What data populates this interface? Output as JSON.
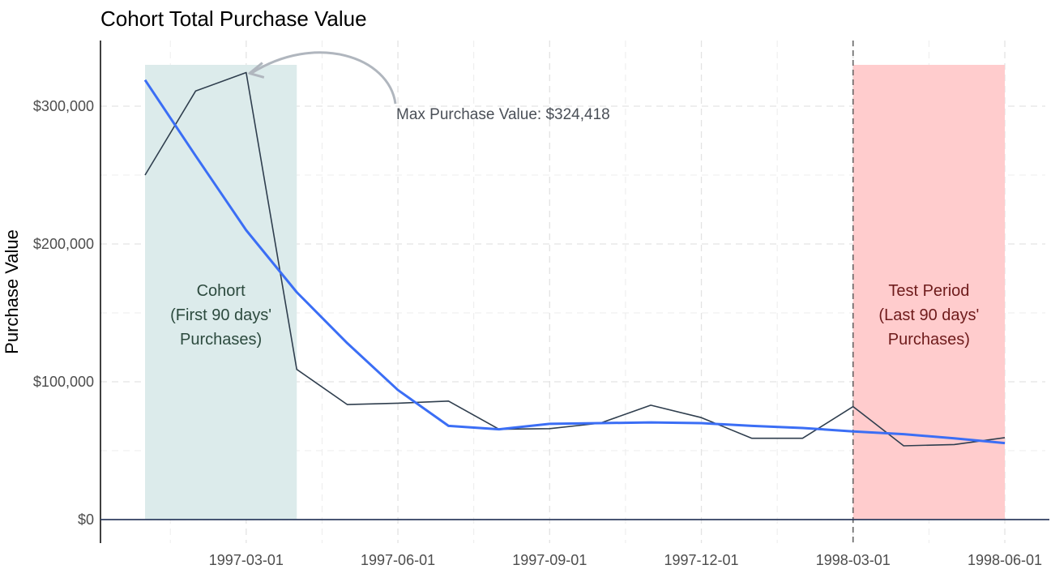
{
  "chart_data": {
    "type": "line",
    "title": "Cohort Total Purchase Value",
    "ylabel": "Purchase Value",
    "xlabel": "",
    "xlim": [
      "1997-01-01",
      "1998-06-01"
    ],
    "ylim": [
      0,
      340000
    ],
    "x_ticks": [
      "1997-03-01",
      "1997-06-01",
      "1997-09-01",
      "1997-12-01",
      "1998-03-01",
      "1998-06-01"
    ],
    "y_ticks": [
      {
        "value": 0,
        "label": "$0"
      },
      {
        "value": 100000,
        "label": "$100,000"
      },
      {
        "value": 200000,
        "label": "$200,000"
      },
      {
        "value": 300000,
        "label": "$300,000"
      }
    ],
    "grid": true,
    "series": [
      {
        "kind": "observed",
        "color": "#2f3e4e",
        "x": [
          "1997-01-01",
          "1997-02-01",
          "1997-03-01",
          "1997-04-01",
          "1997-05-01",
          "1997-06-01",
          "1997-07-01",
          "1997-08-01",
          "1997-09-01",
          "1997-10-01",
          "1997-11-01",
          "1997-12-01",
          "1998-01-01",
          "1998-02-01",
          "1998-03-01",
          "1998-04-01",
          "1998-05-01",
          "1998-06-01"
        ],
        "y": [
          250000,
          311000,
          324418,
          109000,
          83500,
          84500,
          86000,
          65500,
          66000,
          70000,
          83000,
          74000,
          59000,
          59000,
          82000,
          53500,
          54500,
          59500
        ]
      },
      {
        "kind": "smoothed",
        "color": "#3b6ef5",
        "x": [
          "1997-01-01",
          "1997-02-01",
          "1997-03-01",
          "1997-04-01",
          "1997-05-01",
          "1997-06-01",
          "1997-07-01",
          "1997-08-01",
          "1997-09-01",
          "1997-10-01",
          "1997-11-01",
          "1997-12-01",
          "1998-01-01",
          "1998-02-01",
          "1998-03-01",
          "1998-04-01",
          "1998-05-01",
          "1998-06-01"
        ],
        "y": [
          319000,
          264000,
          210000,
          165000,
          128000,
          94000,
          68000,
          65500,
          69500,
          70000,
          70500,
          70000,
          68000,
          66500,
          64000,
          62000,
          59000,
          55500
        ]
      }
    ],
    "regions": [
      {
        "name": "cohort",
        "from": "1997-01-01",
        "to": "1997-04-01",
        "color": "#dcebeb",
        "label_lines": [
          "Cohort",
          "(First 90 days'",
          "Purchases)"
        ],
        "label_color": "#2c4a3e"
      },
      {
        "name": "test",
        "from": "1998-03-01",
        "to": "1998-06-01",
        "color": "#ffcccd",
        "label_lines": [
          "Test Period",
          "(Last 90 days'",
          "Purchases)"
        ],
        "label_color": "#6e1b1b"
      }
    ],
    "vline": "1998-03-01",
    "annotation": {
      "text": "Max Purchase Value: $324,418",
      "target_x": "1997-03-01",
      "target_y": 324418
    }
  }
}
